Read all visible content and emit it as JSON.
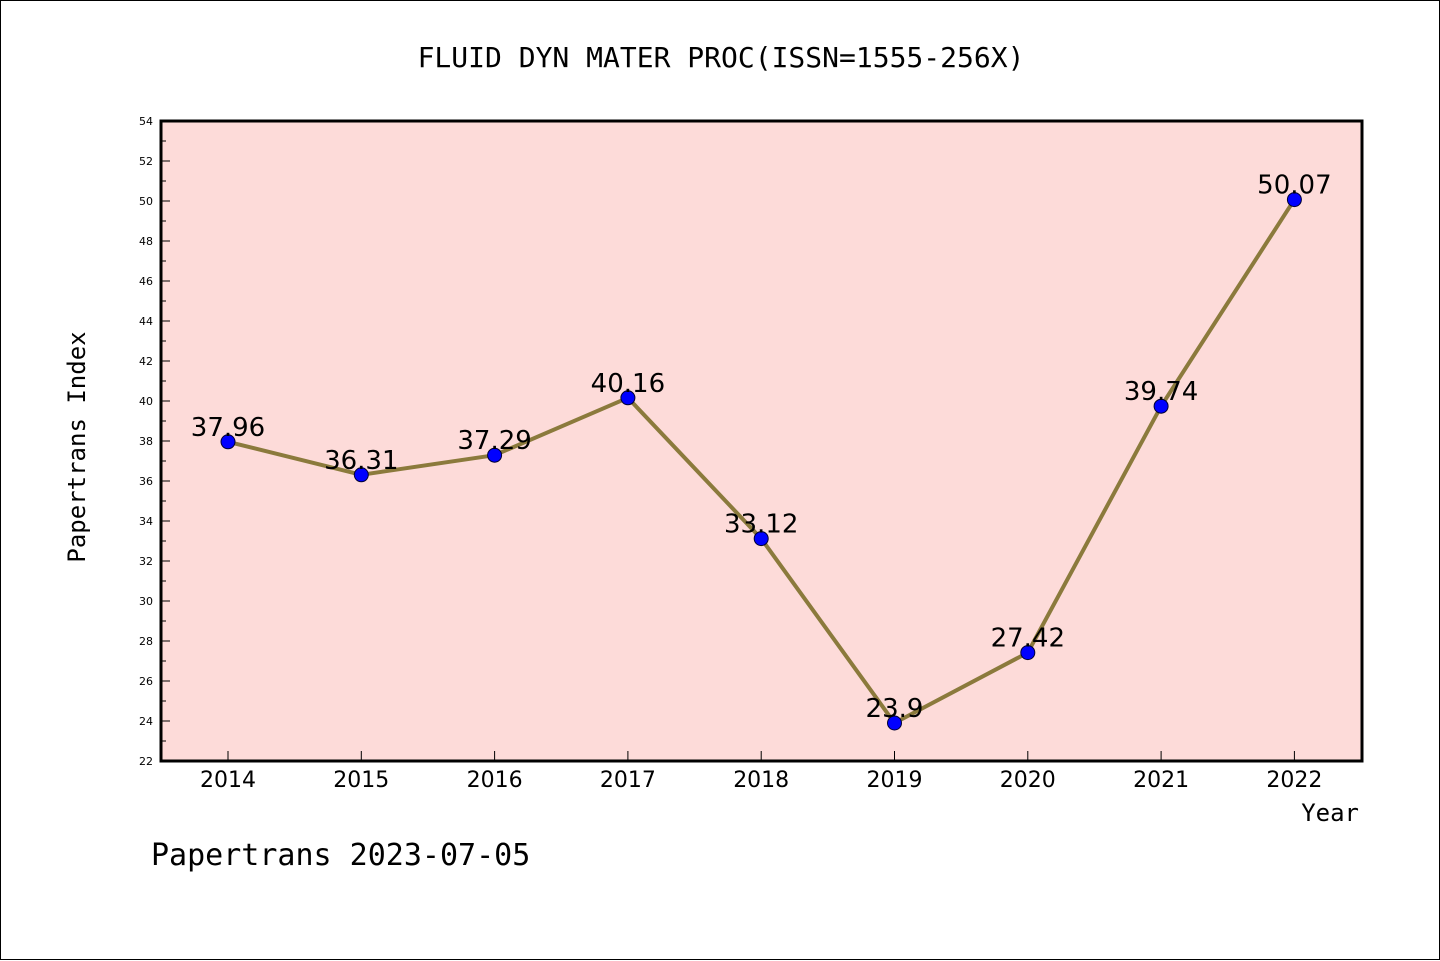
{
  "chart_data": {
    "type": "line",
    "title": "FLUID DYN MATER PROC(ISSN=1555-256X)",
    "xlabel": "Year",
    "ylabel": "Papertrans Index",
    "categories": [
      "2014",
      "2015",
      "2016",
      "2017",
      "2018",
      "2019",
      "2020",
      "2021",
      "2022"
    ],
    "values": [
      37.96,
      36.31,
      37.29,
      40.16,
      33.12,
      23.9,
      27.42,
      39.74,
      50.07
    ],
    "data_labels": [
      "37.96",
      "36.31",
      "37.29",
      "40.16",
      "33.12",
      "23.9",
      "27.42",
      "39.74",
      "50.07"
    ],
    "ylim": [
      22,
      54
    ],
    "yticks": [
      "22",
      "24",
      "26",
      "28",
      "30",
      "32",
      "34",
      "36",
      "38",
      "40",
      "42",
      "44",
      "46",
      "48",
      "50",
      "52",
      "54"
    ],
    "grid": false,
    "line_color": "#8b7a3c",
    "marker_color": "#0000ff",
    "plot_background": "#fddbd9"
  },
  "footer": "Papertrans 2023-07-05"
}
